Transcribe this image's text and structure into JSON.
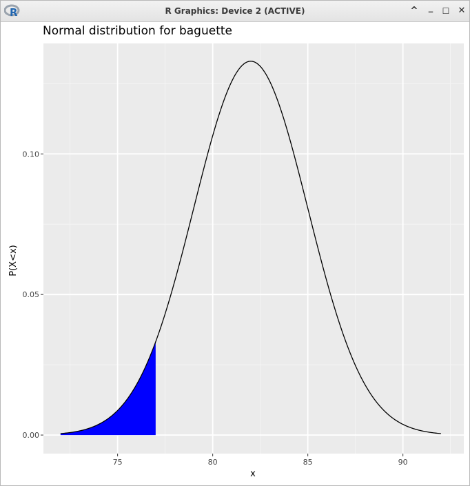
{
  "window": {
    "title": "R Graphics: Device 2 (ACTIVE)",
    "app_icon_letter": "R",
    "controls": {
      "up": "^",
      "minimize": "_",
      "maximize": "☐",
      "close": "✕"
    }
  },
  "chart_data": {
    "type": "area",
    "title": "Normal distribution for baguette",
    "xlabel": "x",
    "ylabel": "P(X<x)",
    "xlim": [
      71.1,
      93.2
    ],
    "ylim": [
      -0.0066,
      0.1393
    ],
    "x_ticks": [
      75,
      80,
      85,
      90
    ],
    "y_ticks": [
      0.0,
      0.05,
      0.1
    ],
    "x_tick_labels": [
      "75",
      "80",
      "85",
      "90"
    ],
    "y_tick_labels": [
      "0.00",
      "0.05",
      "0.10"
    ],
    "distribution": {
      "mean": 82,
      "sd": 3
    },
    "curve_range": [
      72,
      92
    ],
    "shaded_range": [
      72,
      77
    ],
    "curve_color": "#000000",
    "fill_color": "#0000ff",
    "panel_background": "#ebebeb",
    "grid": true
  }
}
